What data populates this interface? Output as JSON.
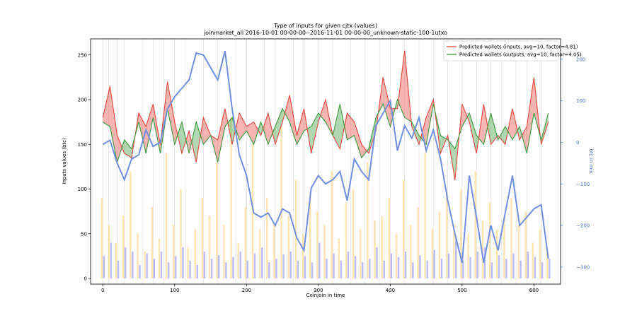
{
  "chart_data": {
    "type": "line",
    "title": "Type of inputs for given cjtx (values)",
    "subtitle": "joinmarket_all 2016-10-01 00-00-00--2016-11-01 00-00-00_unknown-static-100-1utxo",
    "xlabel": "Coinjoin in time",
    "ylabel": "Inputs values (btc)",
    "y2label": "btc in mix",
    "xlim": [
      -17,
      637
    ],
    "ylim": [
      -6.3,
      268
    ],
    "y2lim": [
      -341,
      249
    ],
    "xticks": [
      0,
      100,
      200,
      300,
      400,
      500,
      600
    ],
    "yticks": [
      0,
      50,
      100,
      150,
      200,
      250
    ],
    "y2ticks": [
      {
        "value": -300,
        "label": "−300"
      },
      {
        "value": -200,
        "label": "−200"
      },
      {
        "value": -100,
        "label": "−100"
      },
      0,
      100,
      200
    ],
    "legend": "upper right",
    "x": [
      0,
      10,
      20,
      30,
      40,
      50,
      60,
      70,
      80,
      90,
      100,
      110,
      120,
      130,
      140,
      150,
      160,
      170,
      180,
      190,
      200,
      210,
      220,
      230,
      240,
      250,
      260,
      270,
      280,
      290,
      300,
      310,
      320,
      330,
      340,
      350,
      360,
      370,
      380,
      390,
      400,
      410,
      420,
      430,
      440,
      450,
      460,
      470,
      480,
      490,
      500,
      510,
      520,
      530,
      540,
      550,
      560,
      570,
      580,
      590,
      600,
      610,
      620
    ],
    "series": [
      {
        "name": "Predicted wallets (inputs, avg=10, factor=4.81)",
        "color": "#e8463c",
        "values": [
          180,
          215,
          160,
          140,
          135,
          185,
          170,
          195,
          150,
          220,
          175,
          140,
          165,
          130,
          180,
          160,
          155,
          190,
          150,
          185,
          170,
          175,
          160,
          185,
          150,
          175,
          205,
          160,
          190,
          140,
          175,
          200,
          160,
          145,
          185,
          175,
          150,
          140,
          165,
          225,
          190,
          190,
          255,
          170,
          150,
          180,
          200,
          140,
          160,
          110,
          195,
          175,
          140,
          195,
          150,
          160,
          150,
          190,
          155,
          170,
          225,
          150,
          175
        ]
      },
      {
        "name": "Predicted wallets (outputs, avg=10, factor=4.05)",
        "color": "#3a9a3a",
        "values": [
          175,
          170,
          130,
          155,
          145,
          175,
          140,
          180,
          140,
          190,
          150,
          175,
          140,
          175,
          150,
          160,
          130,
          170,
          180,
          155,
          165,
          150,
          175,
          150,
          170,
          190,
          175,
          150,
          165,
          170,
          185,
          175,
          160,
          195,
          155,
          160,
          135,
          145,
          180,
          195,
          170,
          200,
          180,
          175,
          160,
          150,
          195,
          160,
          155,
          145,
          170,
          185,
          160,
          150,
          185,
          155,
          170,
          155,
          170,
          140,
          185,
          155,
          185
        ]
      },
      {
        "color": "#6f8fe0",
        "axis": "y2",
        "values": [
          -5,
          5,
          -50,
          -90,
          -40,
          -30,
          30,
          -10,
          0,
          80,
          110,
          130,
          150,
          215,
          210,
          180,
          150,
          220,
          80,
          -30,
          -80,
          -170,
          -180,
          -170,
          -200,
          -160,
          -170,
          -230,
          -260,
          -110,
          -80,
          -100,
          -90,
          -70,
          -140,
          -40,
          -70,
          -90,
          40,
          70,
          100,
          -20,
          40,
          10,
          60,
          -20,
          30,
          -40,
          -140,
          -220,
          -290,
          -80,
          -180,
          -290,
          -200,
          -260,
          -170,
          -80,
          -200,
          -180,
          -160,
          -150,
          -280
        ]
      }
    ],
    "bars": [
      {
        "color": "#ffd27a",
        "values": [
          90,
          60,
          40,
          70,
          120,
          50,
          30,
          80,
          45,
          140,
          60,
          100,
          35,
          55,
          90,
          70,
          130,
          60,
          180,
          40,
          80,
          150,
          55,
          90,
          60,
          170,
          70,
          110,
          50,
          95,
          75,
          60,
          120,
          45,
          85,
          100,
          55,
          130,
          65,
          70,
          90,
          50,
          110,
          60,
          80,
          140,
          55,
          75,
          95,
          60,
          100,
          50,
          120,
          65,
          85,
          55,
          70,
          90,
          60,
          75,
          40,
          55,
          30
        ]
      },
      {
        "color": "#8f8ff5",
        "values": [
          25,
          40,
          20,
          35,
          30,
          15,
          28,
          22,
          30,
          18,
          25,
          35,
          20,
          15,
          30,
          22,
          26,
          18,
          24,
          30,
          20,
          28,
          35,
          18,
          22,
          27,
          30,
          20,
          25,
          18,
          40,
          22,
          28,
          20,
          30,
          25,
          18,
          22,
          35,
          20,
          28,
          24,
          30,
          18,
          26,
          20,
          32,
          22,
          28,
          45,
          20,
          24,
          30,
          35,
          18,
          26,
          22,
          28,
          20,
          30,
          24,
          18,
          22
        ]
      }
    ],
    "vlines": [
      0,
      8,
      20,
      30,
      55,
      70,
      85,
      100,
      115,
      140,
      160,
      185,
      200,
      225,
      240,
      265,
      280,
      300,
      320,
      345,
      365,
      385,
      400,
      420,
      440,
      460,
      480,
      500,
      520,
      540,
      555,
      575,
      590,
      610
    ]
  }
}
